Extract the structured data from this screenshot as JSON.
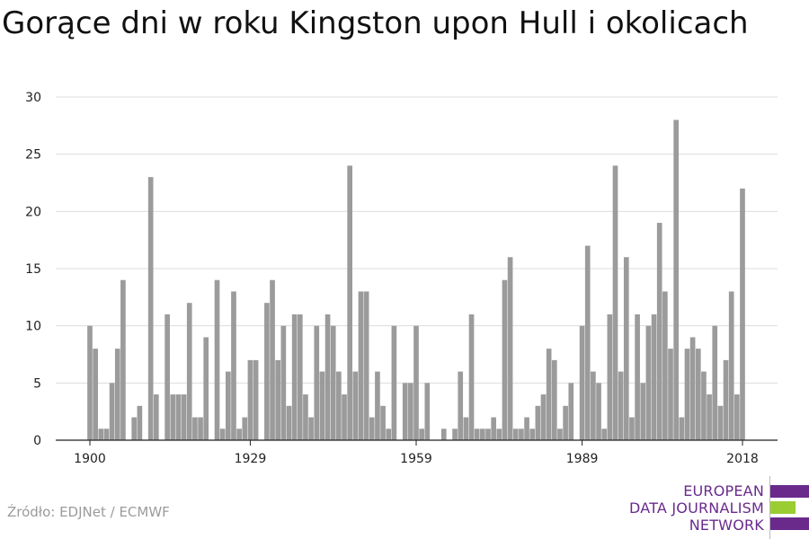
{
  "title": "Gorące dni w roku Kingston upon Hull i okolicach",
  "source": "Źródło: EDJNet / ECMWF",
  "logo": {
    "lines": [
      "EUROPEAN",
      "DATA JOURNALISM",
      "NETWORK"
    ],
    "color_purple": "#6a2a8c",
    "color_green": "#9acd32"
  },
  "colors": {
    "bar": "#9b9b9b",
    "grid": "#dddddd",
    "axis": "#222222",
    "text": "#222222"
  },
  "chart_data": {
    "type": "bar",
    "title": "Gorące dni w roku Kingston upon Hull i okolicach",
    "xlabel": "",
    "ylabel": "",
    "x_ticks": [
      1900,
      1929,
      1959,
      1989,
      2018
    ],
    "y_ticks": [
      0,
      5,
      10,
      15,
      20,
      25,
      30
    ],
    "ylim": [
      0,
      30
    ],
    "grid": true,
    "x": [
      1900,
      1901,
      1902,
      1903,
      1904,
      1905,
      1906,
      1907,
      1908,
      1909,
      1910,
      1911,
      1912,
      1913,
      1914,
      1915,
      1916,
      1917,
      1918,
      1919,
      1920,
      1921,
      1922,
      1923,
      1924,
      1925,
      1926,
      1927,
      1928,
      1929,
      1930,
      1931,
      1932,
      1933,
      1934,
      1935,
      1936,
      1937,
      1938,
      1939,
      1940,
      1941,
      1942,
      1943,
      1944,
      1945,
      1946,
      1947,
      1948,
      1949,
      1950,
      1951,
      1952,
      1953,
      1954,
      1955,
      1956,
      1957,
      1958,
      1959,
      1960,
      1961,
      1962,
      1963,
      1964,
      1965,
      1966,
      1967,
      1968,
      1969,
      1970,
      1971,
      1972,
      1973,
      1974,
      1975,
      1976,
      1977,
      1978,
      1979,
      1980,
      1981,
      1982,
      1983,
      1984,
      1985,
      1986,
      1987,
      1988,
      1989,
      1990,
      1991,
      1992,
      1993,
      1994,
      1995,
      1996,
      1997,
      1998,
      1999,
      2000,
      2001,
      2002,
      2003,
      2004,
      2005,
      2006,
      2007,
      2008,
      2009,
      2010,
      2011,
      2012,
      2013,
      2014,
      2015,
      2016,
      2017,
      2018
    ],
    "values": [
      10,
      8,
      1,
      1,
      5,
      8,
      14,
      0,
      2,
      3,
      0,
      23,
      4,
      0,
      11,
      4,
      4,
      4,
      12,
      2,
      2,
      9,
      0,
      14,
      1,
      6,
      13,
      1,
      2,
      7,
      7,
      0,
      12,
      14,
      7,
      10,
      3,
      11,
      11,
      4,
      2,
      10,
      6,
      11,
      10,
      6,
      4,
      24,
      6,
      13,
      13,
      2,
      6,
      3,
      1,
      10,
      0,
      5,
      5,
      10,
      1,
      5,
      0,
      0,
      1,
      0,
      1,
      6,
      2,
      11,
      1,
      1,
      1,
      2,
      1,
      14,
      16,
      1,
      1,
      2,
      1,
      3,
      4,
      8,
      7,
      1,
      3,
      5,
      0,
      10,
      17,
      6,
      5,
      1,
      11,
      24,
      6,
      16,
      2,
      11,
      5,
      10,
      11,
      19,
      13,
      8,
      28,
      2,
      8,
      9,
      8,
      6,
      4,
      10,
      3,
      7,
      13,
      4,
      22
    ]
  }
}
